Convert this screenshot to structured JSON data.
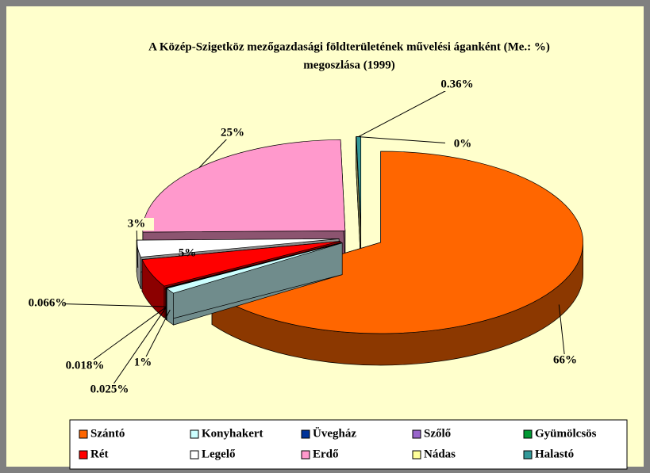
{
  "chart_data": {
    "type": "pie3d",
    "title": [
      "A Közép-Szigetköz mezőgazdasági földterületének művelési áganként (Me.: %)",
      "megoszlása (1999)"
    ],
    "categories": [
      "Szántó",
      "Konyhakert",
      "Üvegház",
      "Szőlő",
      "Gyümölcsös",
      "Rét",
      "Legelő",
      "Erdő",
      "Nádas",
      "Halastó"
    ],
    "values": [
      66,
      1,
      0.025,
      0.018,
      0.066,
      5,
      3,
      25,
      0,
      0.36
    ],
    "value_labels": [
      "66%",
      "1%",
      "0.025%",
      "0.018%",
      "0.066%",
      "5%",
      "3%",
      "25%",
      "0%",
      "0.36%"
    ],
    "colors": [
      "#ff6600",
      "#ccffff",
      "#003399",
      "#9966cc",
      "#009933",
      "#ff0000",
      "#ffffff",
      "#ff99cc",
      "#ffff99",
      "#339999"
    ],
    "legend": "bottom"
  }
}
